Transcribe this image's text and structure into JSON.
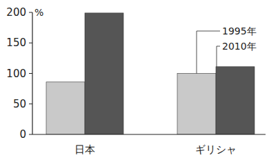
{
  "chart_data": {
    "type": "bar",
    "y_label": "%",
    "categories": [
      "日本",
      "ギリシャ"
    ],
    "series": [
      {
        "name": "1995年",
        "color": "#c9c9c9",
        "values": [
          86,
          100
        ]
      },
      {
        "name": "2010年",
        "color": "#555555",
        "values": [
          199,
          111
        ]
      }
    ],
    "ylim": [
      0,
      200
    ],
    "yticks": [
      0,
      50,
      100,
      150,
      200
    ],
    "grid": false
  }
}
